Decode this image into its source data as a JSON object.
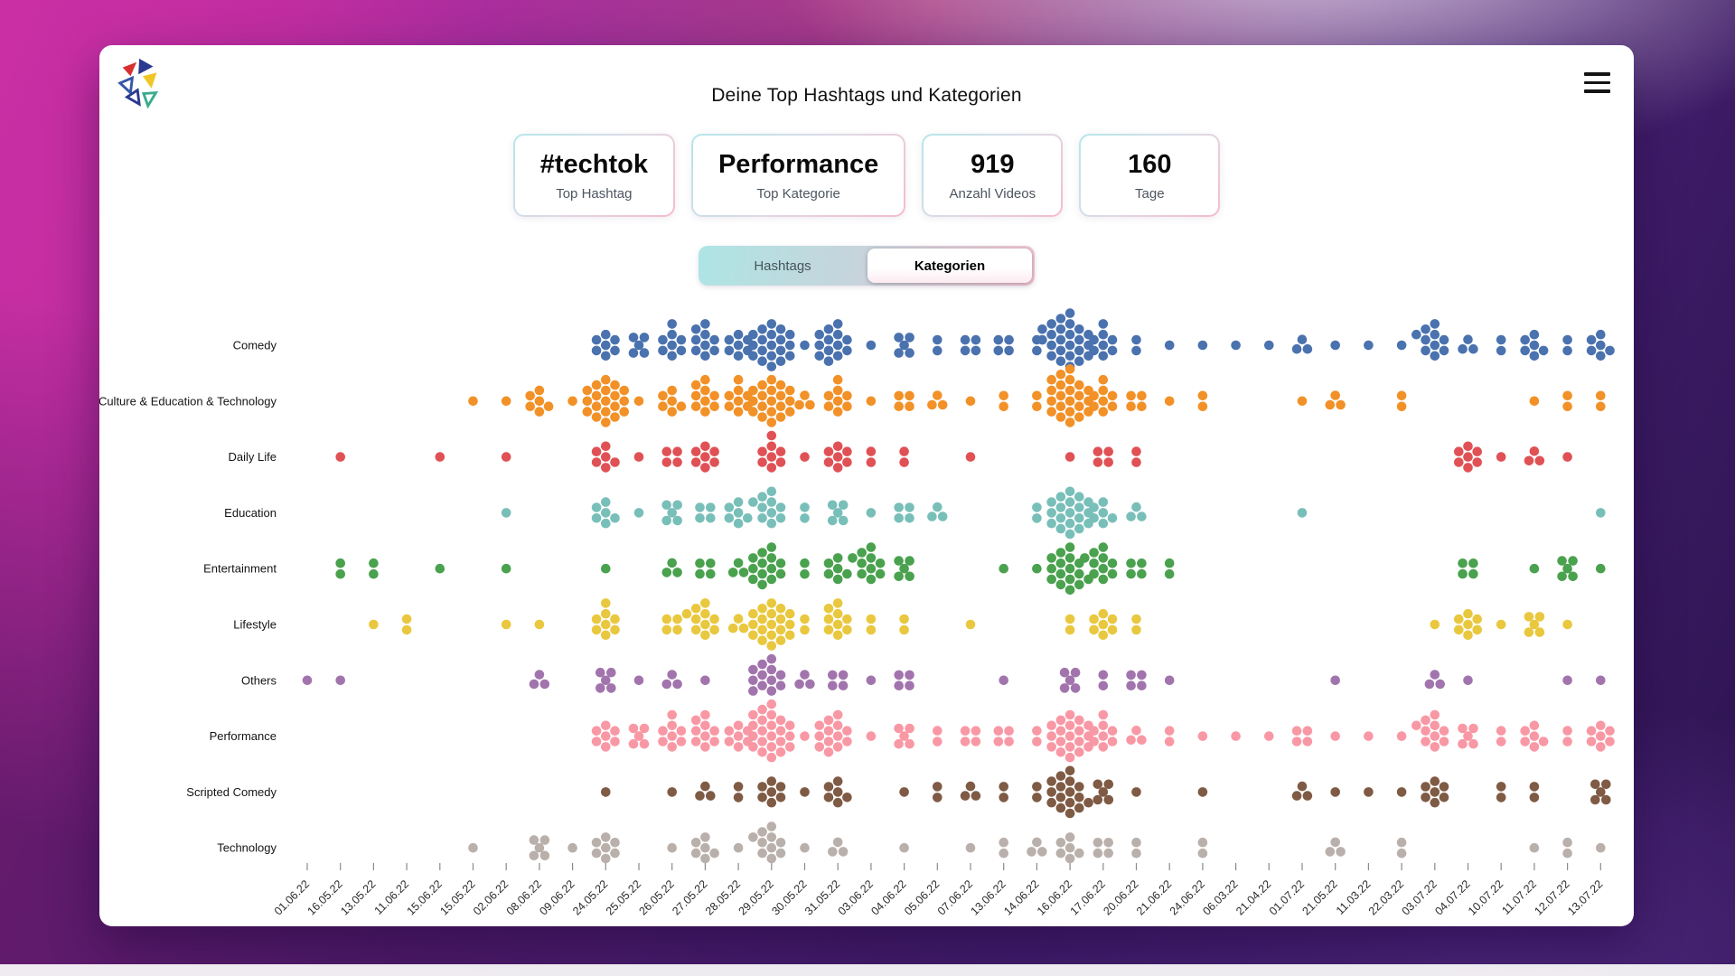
{
  "header": {
    "title": "Deine Top Hashtags und Kategorien"
  },
  "stats": [
    {
      "value": "#techtok",
      "label": "Top Hashtag"
    },
    {
      "value": "Performance",
      "label": "Top Kategorie"
    },
    {
      "value": "919",
      "label": "Anzahl Videos"
    },
    {
      "value": "160",
      "label": "Tage"
    }
  ],
  "toggle": {
    "options": [
      "Hashtags",
      "Kategorien"
    ],
    "selected": "Kategorien"
  },
  "logo_colors": {
    "red": "#d8302f",
    "navy": "#2b3a8f",
    "gold": "#f0c627",
    "green": "#3aab8e",
    "blue": "#3556a8"
  },
  "chart_data": {
    "type": "scatter",
    "variant": "dot-swarm-count-matrix",
    "title": "Deine Top Hashtags und Kategorien",
    "xlabel": "",
    "ylabel": "",
    "legend": "none",
    "grid": false,
    "dot_unit": "1 Video",
    "x_labels": [
      "01.06.22",
      "16.05.22",
      "13.05.22",
      "11.06.22",
      "15.06.22",
      "15.05.22",
      "02.06.22",
      "08.06.22",
      "09.06.22",
      "24.05.22",
      "25.05.22",
      "26.05.22",
      "27.05.22",
      "28.05.22",
      "29.05.22",
      "30.05.22",
      "31.05.22",
      "03.06.22",
      "04.06.22",
      "05.06.22",
      "07.06.22",
      "13.06.22",
      "14.06.22",
      "16.06.22",
      "17.06.22",
      "20.06.22",
      "21.06.22",
      "24.06.22",
      "06.03.22",
      "21.04.22",
      "01.07.22",
      "21.05.22",
      "11.03.22",
      "22.03.22",
      "03.07.22",
      "04.07.22",
      "10.07.22",
      "11.07.22",
      "12.07.22",
      "13.07.22"
    ],
    "categories": [
      "Comedy",
      "Culture & Education & Technology",
      "Daily Life",
      "Education",
      "Entertainment",
      "Lifestyle",
      "Others",
      "Performance",
      "Scripted Comedy",
      "Technology"
    ],
    "series": [
      {
        "name": "Comedy",
        "color": "#4a72ae",
        "counts": [
          0,
          0,
          0,
          0,
          0,
          0,
          0,
          0,
          0,
          7,
          5,
          8,
          9,
          7,
          19,
          1,
          13,
          1,
          5,
          2,
          4,
          4,
          2,
          24,
          8,
          2,
          1,
          1,
          1,
          1,
          3,
          1,
          1,
          1,
          10,
          3,
          2,
          6,
          2,
          6
        ]
      },
      {
        "name": "Culture & Education & Technology",
        "color": "#f29127",
        "counts": [
          0,
          0,
          0,
          0,
          0,
          1,
          1,
          6,
          1,
          19,
          1,
          6,
          9,
          8,
          19,
          3,
          8,
          1,
          4,
          3,
          1,
          2,
          2,
          22,
          8,
          4,
          1,
          2,
          0,
          0,
          1,
          3,
          0,
          2,
          0,
          0,
          0,
          1,
          2,
          2
        ]
      },
      {
        "name": "Daily Life",
        "color": "#e05155",
        "counts": [
          0,
          1,
          0,
          0,
          1,
          0,
          1,
          0,
          0,
          6,
          1,
          4,
          7,
          0,
          8,
          1,
          7,
          2,
          2,
          0,
          1,
          0,
          0,
          1,
          4,
          2,
          0,
          0,
          0,
          0,
          0,
          0,
          0,
          0,
          0,
          7,
          1,
          3,
          1,
          0
        ]
      },
      {
        "name": "Education",
        "color": "#79bfb9",
        "counts": [
          0,
          0,
          0,
          0,
          0,
          0,
          1,
          0,
          0,
          6,
          1,
          5,
          4,
          6,
          10,
          2,
          5,
          1,
          4,
          3,
          0,
          0,
          2,
          19,
          6,
          3,
          0,
          0,
          0,
          0,
          1,
          0,
          0,
          0,
          0,
          0,
          0,
          0,
          0,
          1
        ]
      },
      {
        "name": "Entertainment",
        "color": "#4aa14e",
        "counts": [
          0,
          2,
          2,
          0,
          1,
          0,
          1,
          0,
          0,
          1,
          0,
          3,
          4,
          3,
          13,
          2,
          6,
          10,
          5,
          0,
          0,
          1,
          1,
          16,
          10,
          4,
          2,
          0,
          0,
          0,
          0,
          0,
          0,
          0,
          0,
          4,
          0,
          1,
          5,
          1
        ]
      },
      {
        "name": "Lifestyle",
        "color": "#e9c83f",
        "counts": [
          0,
          0,
          1,
          2,
          0,
          0,
          1,
          1,
          0,
          8,
          0,
          4,
          10,
          3,
          19,
          2,
          9,
          2,
          2,
          0,
          1,
          0,
          0,
          2,
          7,
          2,
          0,
          0,
          0,
          0,
          0,
          0,
          0,
          0,
          1,
          7,
          1,
          5,
          1,
          0
        ]
      },
      {
        "name": "Others",
        "color": "#a274ad",
        "counts": [
          1,
          1,
          0,
          0,
          0,
          0,
          0,
          3,
          0,
          5,
          1,
          3,
          1,
          0,
          12,
          3,
          4,
          1,
          4,
          0,
          0,
          1,
          0,
          5,
          2,
          4,
          1,
          0,
          0,
          0,
          0,
          1,
          0,
          0,
          3,
          1,
          0,
          0,
          1,
          1
        ]
      },
      {
        "name": "Performance",
        "color": "#f998a5",
        "counts": [
          0,
          0,
          0,
          0,
          0,
          0,
          0,
          0,
          0,
          7,
          5,
          8,
          9,
          7,
          22,
          1,
          13,
          1,
          5,
          2,
          4,
          4,
          2,
          19,
          8,
          3,
          2,
          1,
          1,
          1,
          4,
          1,
          1,
          1,
          10,
          5,
          2,
          6,
          2,
          7
        ]
      },
      {
        "name": "Scripted Comedy",
        "color": "#7f5a44",
        "counts": [
          0,
          0,
          0,
          0,
          0,
          0,
          0,
          0,
          0,
          1,
          0,
          1,
          3,
          2,
          7,
          1,
          6,
          0,
          1,
          2,
          3,
          2,
          2,
          16,
          5,
          1,
          0,
          1,
          0,
          0,
          3,
          1,
          1,
          1,
          7,
          0,
          2,
          2,
          0,
          5
        ]
      },
      {
        "name": "Technology",
        "color": "#bab0ab",
        "counts": [
          0,
          0,
          0,
          0,
          0,
          1,
          0,
          5,
          1,
          7,
          0,
          1,
          6,
          1,
          10,
          1,
          3,
          0,
          1,
          0,
          1,
          2,
          3,
          6,
          4,
          2,
          0,
          2,
          0,
          0,
          0,
          3,
          0,
          2,
          0,
          0,
          0,
          1,
          2,
          1
        ]
      }
    ]
  }
}
